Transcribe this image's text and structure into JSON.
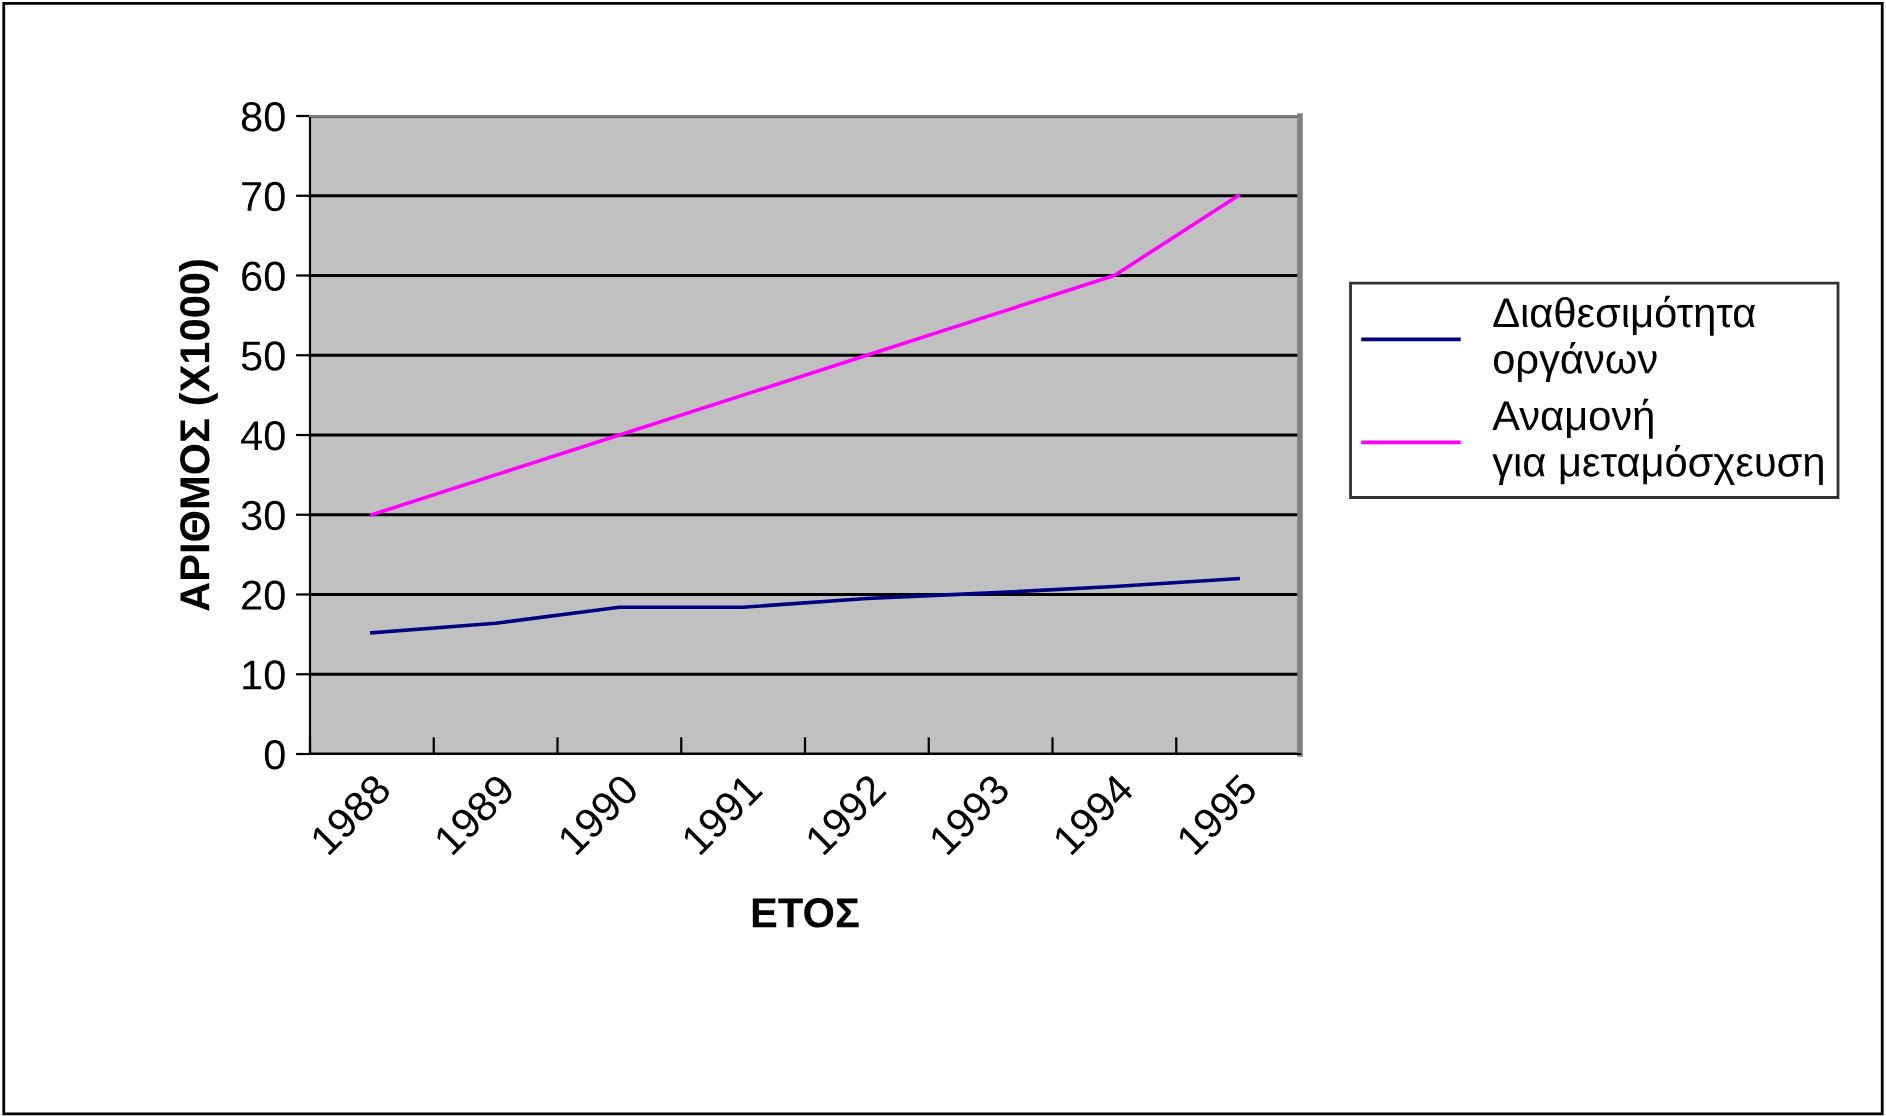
{
  "chart_data": {
    "type": "line",
    "xlabel": "ΕΤΟΣ",
    "ylabel": "ΑΡΙΘΜΟΣ (X1000)",
    "categories": [
      "1988",
      "1989",
      "1990",
      "1991",
      "1992",
      "1993",
      "1994",
      "1995"
    ],
    "series": [
      {
        "name": "Διαθεσιμότητα οργάνων",
        "color": "#000080",
        "values": [
          15.2,
          16.4,
          18.4,
          18.4,
          19.5,
          20.2,
          21.0,
          22.0
        ]
      },
      {
        "name": "Αναμονή για μεταμόσχευση",
        "color": "#ff00ff",
        "values": [
          30,
          35,
          40,
          45,
          50,
          55,
          60,
          70
        ]
      }
    ],
    "ylim": [
      0,
      80
    ],
    "yticks": [
      0,
      10,
      20,
      30,
      40,
      50,
      60,
      70,
      80
    ],
    "grid": "y",
    "legend": "right",
    "marker": "none",
    "line_style": "solid"
  }
}
